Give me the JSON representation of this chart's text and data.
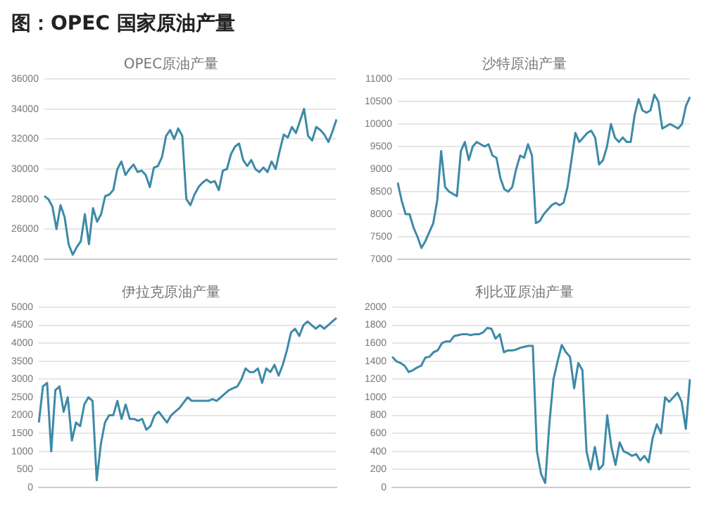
{
  "chart_data": [
    {
      "type": "line",
      "title": "OPEC原油产量",
      "annotations": [
        "图：OPEC 国家原油产量"
      ],
      "categories": [
        null,
        null,
        null,
        null,
        null,
        null,
        null,
        null,
        null,
        null,
        null,
        null,
        null,
        null,
        null,
        null,
        null,
        null,
        null,
        null,
        null,
        null,
        null,
        null,
        null,
        null,
        null,
        null,
        null,
        null,
        null,
        null,
        null,
        null,
        null,
        null,
        null,
        null,
        null,
        null,
        null,
        null,
        null,
        null,
        null,
        null,
        null,
        null,
        null,
        null,
        null,
        null,
        null,
        null,
        null,
        null,
        null,
        null,
        null,
        null,
        null,
        null,
        null,
        null,
        null,
        null,
        null,
        null,
        null,
        null,
        null,
        null,
        null
      ],
      "series": [
        {
          "color": "#3d8aa8",
          "values": [
            28200,
            28000,
            27500,
            26000,
            27600,
            26800,
            25000,
            24300,
            24800,
            25200,
            27000,
            25000,
            27400,
            26500,
            27000,
            28200,
            28300,
            28600,
            30000,
            30500,
            29600,
            30000,
            30300,
            29800,
            29900,
            29600,
            28800,
            30100,
            30200,
            30800,
            32200,
            32600,
            32000,
            32700,
            32200,
            28000,
            27600,
            28300,
            28800,
            29100,
            29300,
            29100,
            29200,
            28600,
            29900,
            30000,
            31000,
            31500,
            31700,
            30600,
            30200,
            30600,
            30000,
            29800,
            30100,
            29800,
            30500,
            30000,
            31200,
            32300,
            32100,
            32800,
            32400,
            33200,
            34000,
            32200,
            31900,
            32800,
            32600,
            32300,
            31800,
            32500,
            33300
          ]
        }
      ],
      "ylim": [
        24000,
        36000
      ],
      "yticks": [
        24000,
        26000,
        28000,
        30000,
        32000,
        34000,
        36000
      ],
      "grid": "y",
      "tick_labels": "y",
      "legend": false
    },
    {
      "type": "line",
      "title": "沙特原油产量",
      "categories": [
        null,
        null,
        null,
        null,
        null,
        null,
        null,
        null,
        null,
        null,
        null,
        null,
        null,
        null,
        null,
        null,
        null,
        null,
        null,
        null,
        null,
        null,
        null,
        null,
        null,
        null,
        null,
        null,
        null,
        null,
        null,
        null,
        null,
        null,
        null,
        null,
        null,
        null,
        null,
        null,
        null,
        null,
        null,
        null,
        null,
        null,
        null,
        null,
        null,
        null,
        null,
        null,
        null,
        null,
        null,
        null,
        null,
        null,
        null,
        null,
        null,
        null,
        null,
        null,
        null,
        null,
        null,
        null,
        null,
        null,
        null,
        null,
        null,
        null,
        null
      ],
      "series": [
        {
          "color": "#3d8aa8",
          "values": [
            8700,
            8300,
            8000,
            8000,
            7700,
            7500,
            7250,
            7400,
            7600,
            7800,
            8300,
            9400,
            8600,
            8500,
            8450,
            8400,
            9400,
            9600,
            9200,
            9500,
            9600,
            9550,
            9500,
            9550,
            9300,
            9250,
            8800,
            8550,
            8500,
            8600,
            9000,
            9300,
            9250,
            9550,
            9300,
            7800,
            7850,
            8000,
            8100,
            8200,
            8250,
            8200,
            8250,
            8600,
            9200,
            9800,
            9600,
            9700,
            9800,
            9850,
            9700,
            9100,
            9200,
            9500,
            10000,
            9700,
            9600,
            9700,
            9600,
            9600,
            10200,
            10550,
            10300,
            10250,
            10300,
            10650,
            10500,
            9900,
            9950,
            10000,
            9950,
            9900,
            10000,
            10400,
            10600
          ]
        }
      ],
      "ylim": [
        7000,
        11000
      ],
      "yticks": [
        7000,
        7500,
        8000,
        8500,
        9000,
        9500,
        10000,
        10500,
        11000
      ],
      "grid": "y",
      "tick_labels": "y",
      "legend": false
    },
    {
      "type": "line",
      "title": "伊拉克原油产量",
      "categories": [
        null,
        null,
        null,
        null,
        null,
        null,
        null,
        null,
        null,
        null,
        null,
        null,
        null,
        null,
        null,
        null,
        null,
        null,
        null,
        null,
        null,
        null,
        null,
        null,
        null,
        null,
        null,
        null,
        null,
        null,
        null,
        null,
        null,
        null,
        null,
        null,
        null,
        null,
        null,
        null,
        null,
        null,
        null,
        null,
        null,
        null,
        null,
        null,
        null,
        null,
        null,
        null,
        null,
        null,
        null,
        null,
        null,
        null,
        null,
        null,
        null,
        null,
        null,
        null,
        null,
        null,
        null,
        null,
        null,
        null,
        null,
        null,
        null
      ],
      "series": [
        {
          "color": "#3d8aa8",
          "values": [
            1800,
            2800,
            2900,
            1000,
            2700,
            2800,
            2100,
            2500,
            1300,
            1800,
            1700,
            2300,
            2500,
            2400,
            200,
            1200,
            1800,
            2000,
            2000,
            2400,
            1900,
            2300,
            1900,
            1900,
            1850,
            1900,
            1600,
            1700,
            2000,
            2100,
            1950,
            1800,
            2000,
            2100,
            2200,
            2350,
            2500,
            2400,
            2400,
            2400,
            2400,
            2400,
            2450,
            2400,
            2500,
            2600,
            2700,
            2750,
            2800,
            3000,
            3300,
            3200,
            3200,
            3300,
            2900,
            3300,
            3200,
            3400,
            3100,
            3400,
            3800,
            4300,
            4400,
            4200,
            4500,
            4600,
            4500,
            4400,
            4500,
            4400,
            4500,
            4600,
            4700
          ]
        }
      ],
      "ylim": [
        0,
        5000
      ],
      "yticks": [
        0,
        500,
        1000,
        1500,
        2000,
        2500,
        3000,
        3500,
        4000,
        4500,
        5000
      ],
      "grid": "y",
      "tick_labels": "y",
      "legend": false
    },
    {
      "type": "line",
      "title": "利比亚原油产量",
      "categories": [
        null,
        null,
        null,
        null,
        null,
        null,
        null,
        null,
        null,
        null,
        null,
        null,
        null,
        null,
        null,
        null,
        null,
        null,
        null,
        null,
        null,
        null,
        null,
        null,
        null,
        null,
        null,
        null,
        null,
        null,
        null,
        null,
        null,
        null,
        null,
        null,
        null,
        null,
        null,
        null,
        null,
        null,
        null,
        null,
        null,
        null,
        null,
        null,
        null,
        null,
        null,
        null,
        null,
        null,
        null,
        null,
        null,
        null,
        null,
        null,
        null,
        null,
        null,
        null,
        null,
        null,
        null,
        null,
        null,
        null,
        null,
        null,
        null
      ],
      "series": [
        {
          "color": "#3d8aa8",
          "values": [
            1450,
            1400,
            1380,
            1350,
            1280,
            1300,
            1330,
            1350,
            1440,
            1450,
            1500,
            1520,
            1600,
            1620,
            1620,
            1680,
            1690,
            1700,
            1700,
            1690,
            1700,
            1700,
            1720,
            1770,
            1760,
            1650,
            1700,
            1500,
            1520,
            1520,
            1530,
            1550,
            1560,
            1570,
            1570,
            400,
            150,
            50,
            700,
            1200,
            1400,
            1580,
            1500,
            1450,
            1100,
            1380,
            1300,
            400,
            200,
            450,
            200,
            250,
            800,
            450,
            250,
            500,
            400,
            380,
            350,
            370,
            300,
            350,
            280,
            550,
            700,
            600,
            1000,
            950,
            1000,
            1050,
            950,
            650,
            1200
          ]
        }
      ],
      "ylim": [
        0,
        2000
      ],
      "yticks": [
        0,
        200,
        400,
        600,
        800,
        1000,
        1200,
        1400,
        1600,
        1800,
        2000
      ],
      "grid": "y",
      "tick_labels": "y",
      "legend": false
    }
  ]
}
